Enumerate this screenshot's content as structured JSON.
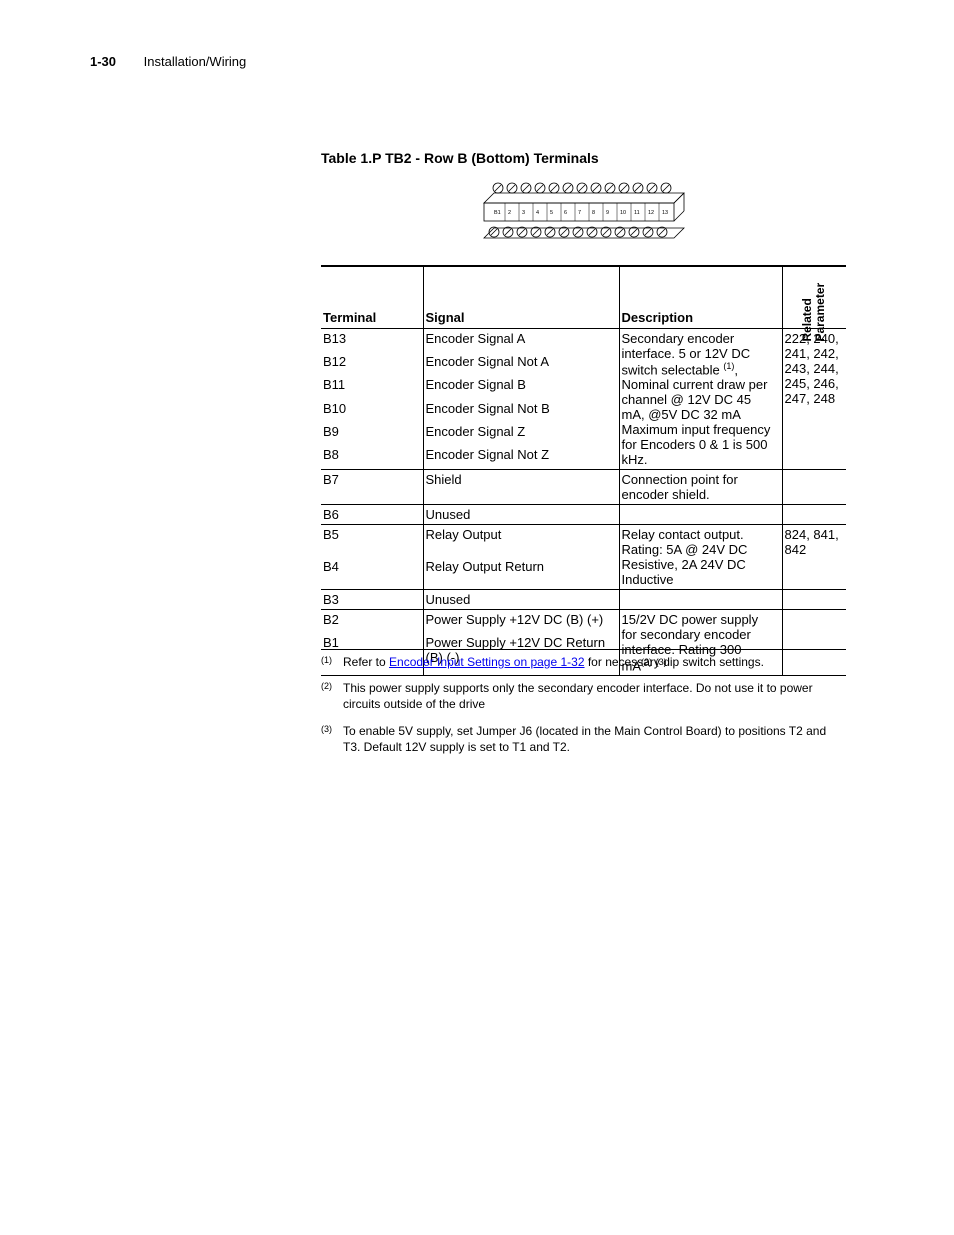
{
  "header": {
    "page_number": "1-30",
    "section": "Installation/Wiring"
  },
  "table": {
    "title": "Table 1.P   TB2 - Row B (Bottom) Terminals",
    "columns": {
      "terminal": "Terminal",
      "signal": "Signal",
      "description": "Description",
      "related_line1": "Related",
      "related_line2": "Parameter"
    },
    "groups": [
      {
        "description": "Secondary encoder interface. 5 or 12V DC switch selectable (1), Nominal current draw per channel @ 12V DC 45 mA, @5V DC 32 mA\nMaximum input frequency for Encoders 0 & 1 is 500 kHz.",
        "param": "222, 240, 241, 242, 243, 244, 245, 246, 247, 248",
        "rows": [
          {
            "terminal": "B13",
            "signal": "Encoder Signal A"
          },
          {
            "terminal": "B12",
            "signal": "Encoder Signal Not A"
          },
          {
            "terminal": "B11",
            "signal": "Encoder Signal B"
          },
          {
            "terminal": "B10",
            "signal": "Encoder Signal Not B"
          },
          {
            "terminal": "B9",
            "signal": "Encoder Signal Z"
          },
          {
            "terminal": "B8",
            "signal": "Encoder Signal Not Z"
          }
        ]
      },
      {
        "description": "Connection point for encoder shield.",
        "param": "",
        "rows": [
          {
            "terminal": "B7",
            "signal": "Shield"
          }
        ]
      },
      {
        "description": "",
        "param": "",
        "rows": [
          {
            "terminal": "B6",
            "signal": "Unused"
          }
        ]
      },
      {
        "description": "Relay contact output.\nRating: 5A @ 24V DC Resistive, 2A 24V DC Inductive",
        "param": "824, 841, 842",
        "rows": [
          {
            "terminal": "B5",
            "signal": "Relay Output"
          },
          {
            "terminal": "B4",
            "signal": "Relay Output Return"
          }
        ]
      },
      {
        "description": "",
        "param": "",
        "rows": [
          {
            "terminal": "B3",
            "signal": "Unused"
          }
        ]
      },
      {
        "description": "15/2V DC power supply for secondary encoder interface. Rating 300 mA(2) (3)",
        "param": "",
        "rows": [
          {
            "terminal": "B2",
            "signal": "Power Supply +12V DC (B) (+)"
          },
          {
            "terminal": "B1",
            "signal": "Power Supply +12V DC Return (B) (-)"
          }
        ]
      }
    ]
  },
  "footnotes": [
    {
      "marker": "(1)",
      "pre": "Refer to ",
      "link": "Encoder Input Settings on page 1-32",
      "post": " for necessary dip switch settings."
    },
    {
      "marker": "(2)",
      "pre": "This power supply supports only the secondary encoder interface. Do not use it to power circuits outside of the drive",
      "link": "",
      "post": ""
    },
    {
      "marker": "(3)",
      "pre": "To enable 5V supply, set Jumper J6 (located in the Main Control Board) to positions T2 and T3. Default 12V supply is set to T1 and T2.",
      "link": "",
      "post": ""
    }
  ],
  "diagram": {
    "num_terminals": 13,
    "label_prefix": "B",
    "colors": {
      "stroke": "#000000",
      "fill_top": "#ffffff",
      "fill_bottom": "#ffffff"
    }
  }
}
